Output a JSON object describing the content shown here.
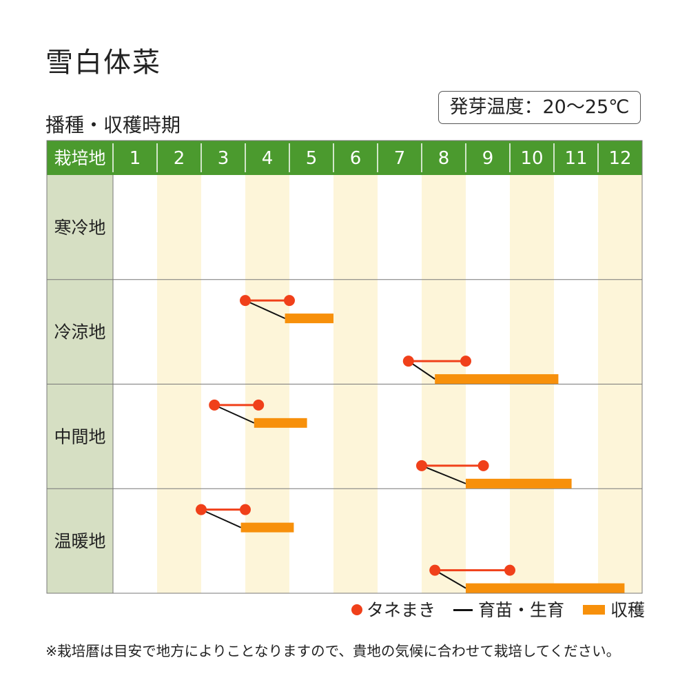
{
  "page": {
    "title": "雪白体菜",
    "subtitle": "播種・収穫時期",
    "temperature_label": "発芽温度：20〜25℃",
    "note": "※栽培暦は目安で地方によりことなりますので、貴地の気候に合わせて栽培してください。"
  },
  "colors": {
    "header_green": "#4b9a2e",
    "region_col": "#d6dfc3",
    "stripe": "#fdf5d9",
    "sowing_dot": "#f0401a",
    "sowing_line": "#f0401a",
    "growth_line": "#111111",
    "harvest_bar": "#f7900b",
    "grid": "#777777"
  },
  "chart_data": {
    "type": "gantt",
    "header_label": "栽培地",
    "months": [
      "1",
      "2",
      "3",
      "4",
      "5",
      "6",
      "7",
      "8",
      "9",
      "10",
      "11",
      "12"
    ],
    "legend": [
      {
        "key": "sowing",
        "label": "タネまき",
        "icon": "dot"
      },
      {
        "key": "growth",
        "label": "育苗・生育",
        "icon": "line"
      },
      {
        "key": "harvest",
        "label": "収穫",
        "icon": "bar"
      }
    ],
    "regions": [
      {
        "name": "寒冷地",
        "schedules": []
      },
      {
        "name": "冷涼地",
        "schedules": [
          {
            "sowing": [
              4.0,
              5.0
            ],
            "harvest": [
              4.9,
              6.0
            ]
          },
          {
            "sowing": [
              7.7,
              9.0
            ],
            "harvest": [
              8.3,
              11.1
            ]
          }
        ]
      },
      {
        "name": "中間地",
        "schedules": [
          {
            "sowing": [
              3.3,
              4.3
            ],
            "harvest": [
              4.2,
              5.4
            ]
          },
          {
            "sowing": [
              8.0,
              9.4
            ],
            "harvest": [
              9.0,
              11.4
            ]
          }
        ]
      },
      {
        "name": "温暖地",
        "schedules": [
          {
            "sowing": [
              3.0,
              4.0
            ],
            "harvest": [
              3.9,
              5.1
            ]
          },
          {
            "sowing": [
              8.3,
              10.0
            ],
            "harvest": [
              9.0,
              12.6
            ]
          }
        ]
      }
    ]
  }
}
